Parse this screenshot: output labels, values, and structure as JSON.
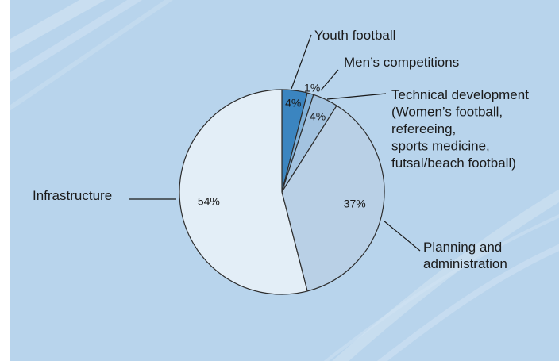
{
  "chart_data": {
    "type": "pie",
    "title": "",
    "categories": [
      "Youth football",
      "Men's competitions",
      "Technical development (Women's football, refereeing, sports medicine, futsal/beach football)",
      "Planning and administration",
      "Infrastructure"
    ],
    "values": [
      4,
      1,
      4,
      37,
      54
    ],
    "value_labels": [
      "4%",
      "1%",
      "4%",
      "37%",
      "54%"
    ],
    "outer_labels": [
      [
        "Youth football"
      ],
      [
        "Men’s competitions"
      ],
      [
        "Technical development",
        "(Women’s football,",
        "refereeing,",
        "sports medicine,",
        "futsal/beach football)"
      ],
      [
        "Planning and",
        "administration"
      ],
      [
        "Infrastructure"
      ]
    ],
    "colors": [
      "#3b85c0",
      "#7fb0d8",
      "#a3c3e0",
      "#b9d0e6",
      "#e3eef7"
    ],
    "background": "#b8d4ec"
  }
}
